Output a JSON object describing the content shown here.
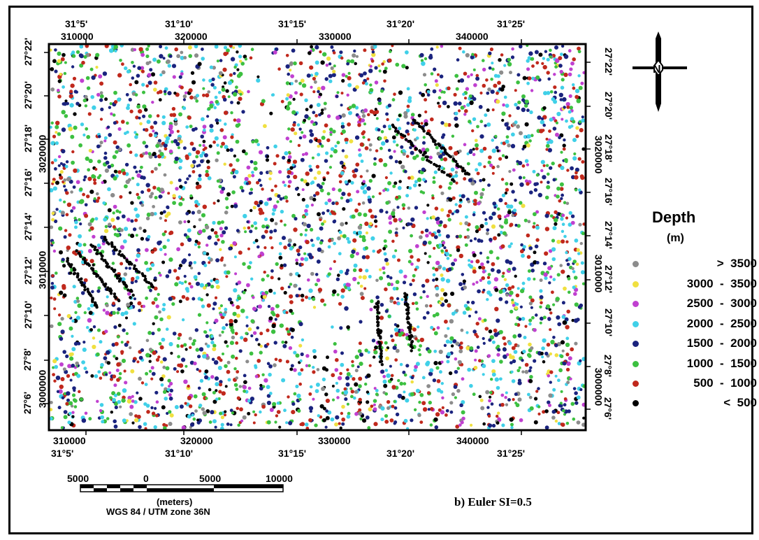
{
  "figure": {
    "caption": "b) Euler SI=0.5"
  },
  "axes": {
    "top_lon": [
      "31°5'",
      "31°10'",
      "31°15'",
      "31°20'",
      "31°25'"
    ],
    "top_utm": [
      "310000",
      "320000",
      "330000",
      "340000"
    ],
    "bottom_utm": [
      "310000",
      "320000",
      "330000",
      "340000"
    ],
    "bottom_lon": [
      "31°5'",
      "31°10'",
      "31°15'",
      "31°20'",
      "31°25'"
    ],
    "left_lat": [
      "27°22'",
      "27°20'",
      "27°18'",
      "27°16'",
      "27°14'",
      "27°12'",
      "27°10'",
      "27°8'",
      "27°6'"
    ],
    "left_utm": [
      "3020000",
      "3010000",
      "3000000"
    ],
    "right_lat": [
      "27°22'",
      "27°20'",
      "27°18'",
      "27°16'",
      "27°14'",
      "27°12'",
      "27°10'",
      "27°8'",
      "27°6'"
    ],
    "right_utm": [
      "3020000",
      "3010000",
      "3000000"
    ]
  },
  "legend": {
    "title": "Depth",
    "unit": "(m)",
    "items": [
      {
        "label": ">  3500",
        "color": "#8c8c8c"
      },
      {
        "label": "3000  -  3500",
        "color": "#f0e040"
      },
      {
        "label": "2500  -  3000",
        "color": "#c040d0"
      },
      {
        "label": "2000  -  2500",
        "color": "#40d0e8"
      },
      {
        "label": "1500  -  2000",
        "color": "#1a237e"
      },
      {
        "label": "1000  -  1500",
        "color": "#3cc040"
      },
      {
        "label": "500  -  1000",
        "color": "#c0281c"
      },
      {
        "label": "<  500",
        "color": "#000000"
      }
    ]
  },
  "scale_bar": {
    "labels": [
      "5000",
      "0",
      "5000",
      "10000"
    ],
    "units": "(meters)",
    "projection": "WGS 84 / UTM zone 36N"
  },
  "north_arrow": {
    "icon": "north-arrow-icon"
  }
}
